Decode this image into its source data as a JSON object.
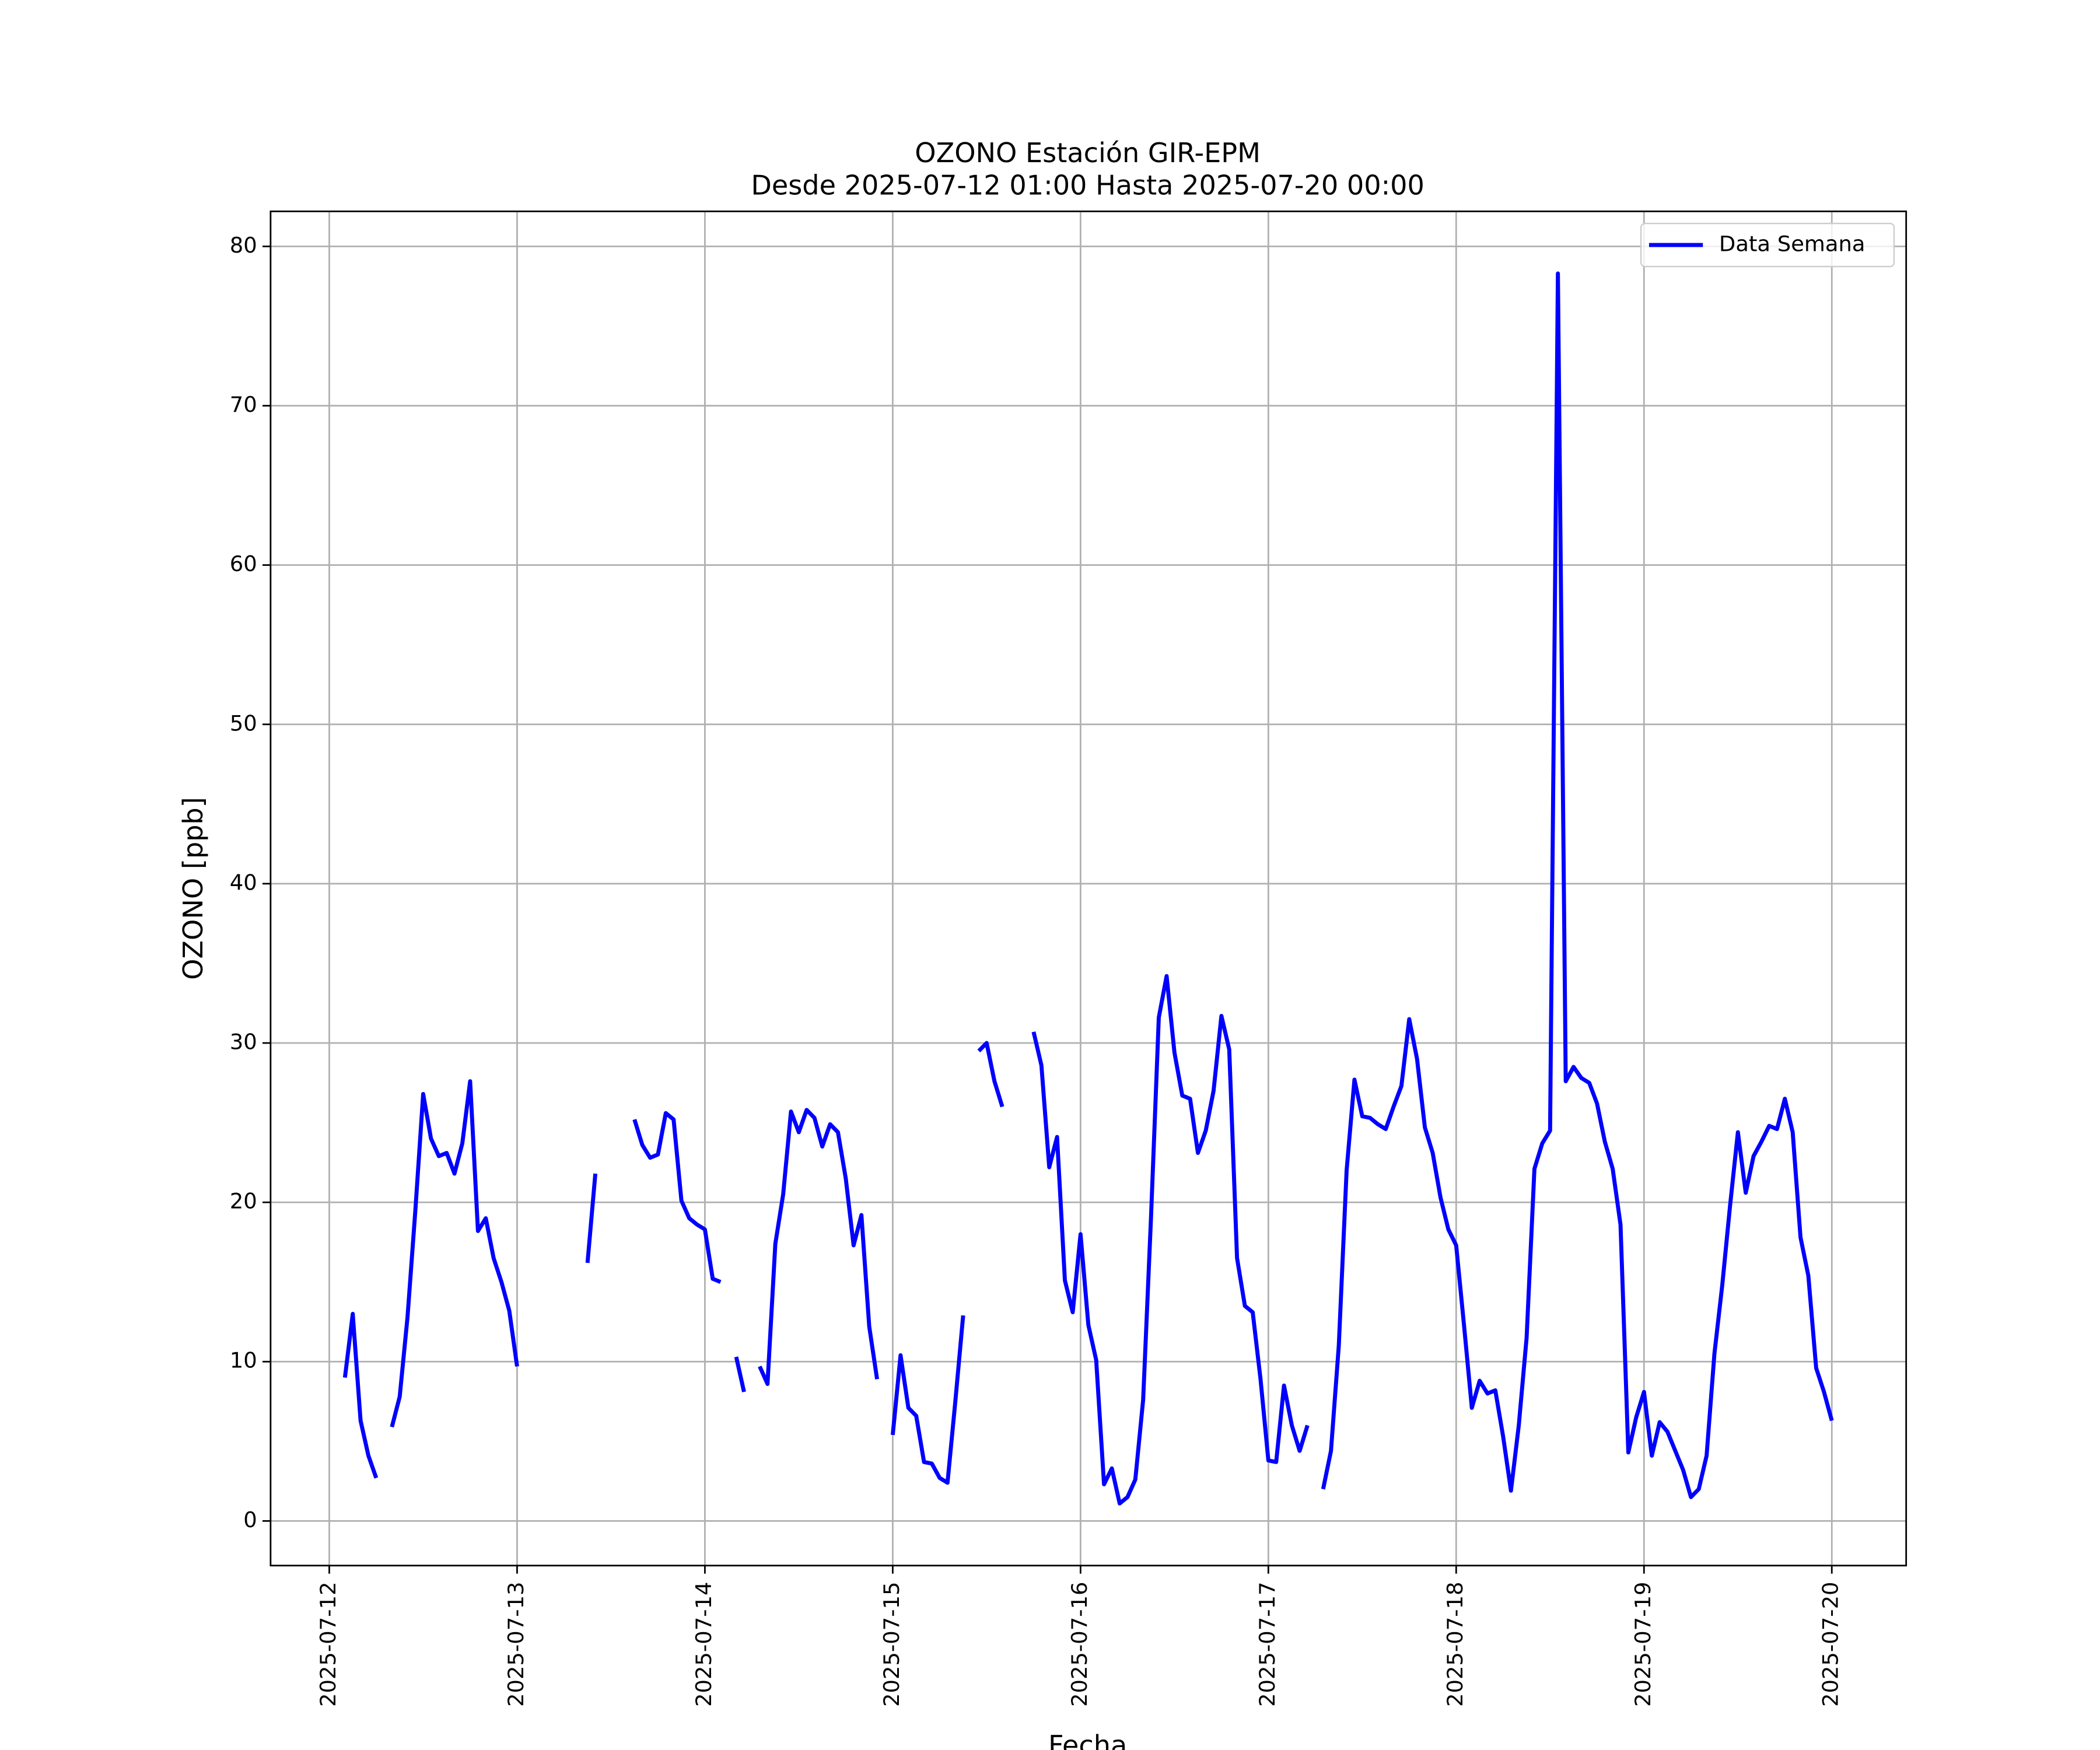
{
  "chart_data": {
    "type": "line",
    "title": "OZONO Estación GIR-EPM",
    "subtitle": "Desde 2025-07-12 01:00 Hasta 2025-07-20 00:00",
    "xlabel": "Fecha",
    "ylabel": "OZONO [ppb]",
    "x": [
      "2025-07-12 01:00",
      "2025-07-12 02:00",
      "2025-07-12 03:00",
      "2025-07-12 04:00",
      "2025-07-12 05:00",
      "2025-07-12 06:00",
      "2025-07-12 07:00",
      "2025-07-12 08:00",
      "2025-07-12 09:00",
      "2025-07-12 10:00",
      "2025-07-12 11:00",
      "2025-07-12 12:00",
      "2025-07-12 13:00",
      "2025-07-12 14:00",
      "2025-07-12 15:00",
      "2025-07-12 16:00",
      "2025-07-12 17:00",
      "2025-07-12 18:00",
      "2025-07-12 19:00",
      "2025-07-12 20:00",
      "2025-07-12 21:00",
      "2025-07-12 22:00",
      "2025-07-12 23:00",
      "2025-07-13 00:00",
      "2025-07-13 01:00",
      "2025-07-13 02:00",
      "2025-07-13 03:00",
      "2025-07-13 04:00",
      "2025-07-13 05:00",
      "2025-07-13 06:00",
      "2025-07-13 07:00",
      "2025-07-13 08:00",
      "2025-07-13 09:00",
      "2025-07-13 10:00",
      "2025-07-13 11:00",
      "2025-07-13 12:00",
      "2025-07-13 13:00",
      "2025-07-13 14:00",
      "2025-07-13 15:00",
      "2025-07-13 16:00",
      "2025-07-13 17:00",
      "2025-07-13 18:00",
      "2025-07-13 19:00",
      "2025-07-13 20:00",
      "2025-07-13 21:00",
      "2025-07-13 22:00",
      "2025-07-13 23:00",
      "2025-07-14 00:00",
      "2025-07-14 01:00",
      "2025-07-14 02:00",
      "2025-07-14 03:00",
      "2025-07-14 04:00",
      "2025-07-14 05:00",
      "2025-07-14 06:00",
      "2025-07-14 07:00",
      "2025-07-14 08:00",
      "2025-07-14 09:00",
      "2025-07-14 10:00",
      "2025-07-14 11:00",
      "2025-07-14 12:00",
      "2025-07-14 13:00",
      "2025-07-14 14:00",
      "2025-07-14 15:00",
      "2025-07-14 16:00",
      "2025-07-14 17:00",
      "2025-07-14 18:00",
      "2025-07-14 19:00",
      "2025-07-14 20:00",
      "2025-07-14 21:00",
      "2025-07-14 22:00",
      "2025-07-14 23:00",
      "2025-07-15 00:00",
      "2025-07-15 01:00",
      "2025-07-15 02:00",
      "2025-07-15 03:00",
      "2025-07-15 04:00",
      "2025-07-15 05:00",
      "2025-07-15 06:00",
      "2025-07-15 07:00",
      "2025-07-15 08:00",
      "2025-07-15 09:00",
      "2025-07-15 10:00",
      "2025-07-15 11:00",
      "2025-07-15 12:00",
      "2025-07-15 13:00",
      "2025-07-15 14:00",
      "2025-07-15 15:00",
      "2025-07-15 16:00",
      "2025-07-15 17:00",
      "2025-07-15 18:00",
      "2025-07-15 19:00",
      "2025-07-15 20:00",
      "2025-07-15 21:00",
      "2025-07-15 22:00",
      "2025-07-15 23:00",
      "2025-07-16 00:00",
      "2025-07-16 01:00",
      "2025-07-16 02:00",
      "2025-07-16 03:00",
      "2025-07-16 04:00",
      "2025-07-16 05:00",
      "2025-07-16 06:00",
      "2025-07-16 07:00",
      "2025-07-16 08:00",
      "2025-07-16 09:00",
      "2025-07-16 10:00",
      "2025-07-16 11:00",
      "2025-07-16 12:00",
      "2025-07-16 13:00",
      "2025-07-16 14:00",
      "2025-07-16 15:00",
      "2025-07-16 16:00",
      "2025-07-16 17:00",
      "2025-07-16 18:00",
      "2025-07-16 19:00",
      "2025-07-16 20:00",
      "2025-07-16 21:00",
      "2025-07-16 22:00",
      "2025-07-16 23:00",
      "2025-07-17 00:00",
      "2025-07-17 01:00",
      "2025-07-17 02:00",
      "2025-07-17 03:00",
      "2025-07-17 04:00",
      "2025-07-17 05:00",
      "2025-07-17 06:00",
      "2025-07-17 07:00",
      "2025-07-17 08:00",
      "2025-07-17 09:00",
      "2025-07-17 10:00",
      "2025-07-17 11:00",
      "2025-07-17 12:00",
      "2025-07-17 13:00",
      "2025-07-17 14:00",
      "2025-07-17 15:00",
      "2025-07-17 16:00",
      "2025-07-17 17:00",
      "2025-07-17 18:00",
      "2025-07-17 19:00",
      "2025-07-17 20:00",
      "2025-07-17 21:00",
      "2025-07-17 22:00",
      "2025-07-17 23:00",
      "2025-07-18 00:00",
      "2025-07-18 01:00",
      "2025-07-18 02:00",
      "2025-07-18 03:00",
      "2025-07-18 04:00",
      "2025-07-18 05:00",
      "2025-07-18 06:00",
      "2025-07-18 07:00",
      "2025-07-18 08:00",
      "2025-07-18 09:00",
      "2025-07-18 10:00",
      "2025-07-18 11:00",
      "2025-07-18 12:00",
      "2025-07-18 13:00",
      "2025-07-18 14:00",
      "2025-07-18 15:00",
      "2025-07-18 16:00",
      "2025-07-18 17:00",
      "2025-07-18 18:00",
      "2025-07-18 19:00",
      "2025-07-18 20:00",
      "2025-07-18 21:00",
      "2025-07-18 22:00",
      "2025-07-18 23:00",
      "2025-07-19 00:00",
      "2025-07-19 01:00",
      "2025-07-19 02:00",
      "2025-07-19 03:00",
      "2025-07-19 04:00",
      "2025-07-19 05:00",
      "2025-07-19 06:00",
      "2025-07-19 07:00",
      "2025-07-19 08:00",
      "2025-07-19 09:00",
      "2025-07-19 10:00",
      "2025-07-19 11:00",
      "2025-07-19 12:00",
      "2025-07-19 13:00",
      "2025-07-19 14:00",
      "2025-07-19 15:00",
      "2025-07-19 16:00",
      "2025-07-19 17:00",
      "2025-07-19 18:00",
      "2025-07-19 19:00",
      "2025-07-19 20:00",
      "2025-07-19 21:00",
      "2025-07-19 22:00",
      "2025-07-19 23:00",
      "2025-07-20 00:00"
    ],
    "series": [
      {
        "name": "Data Semana",
        "color": "#0000ff",
        "values": [
          null,
          9.0,
          13.0,
          6.3,
          4.1,
          2.7,
          null,
          5.9,
          7.8,
          12.8,
          19.5,
          26.8,
          24.0,
          22.9,
          23.1,
          21.8,
          23.7,
          27.6,
          18.2,
          19.0,
          16.5,
          15.0,
          13.2,
          9.7,
          null,
          null,
          null,
          null,
          null,
          null,
          null,
          null,
          16.2,
          21.8,
          null,
          null,
          null,
          null,
          25.2,
          23.6,
          22.8,
          23.0,
          25.6,
          25.2,
          20.1,
          19.0,
          18.6,
          18.3,
          15.2,
          15.0,
          null,
          10.3,
          8.1,
          null,
          9.7,
          8.6,
          17.4,
          20.5,
          25.7,
          24.4,
          25.8,
          25.3,
          23.5,
          24.9,
          24.4,
          21.5,
          17.3,
          19.2,
          12.2,
          8.9,
          null,
          5.4,
          10.4,
          7.1,
          6.6,
          3.7,
          3.6,
          2.7,
          2.4,
          7.5,
          12.9,
          null,
          29.5,
          30.0,
          27.6,
          26.0,
          null,
          null,
          null,
          30.7,
          28.6,
          22.2,
          24.1,
          15.1,
          13.1,
          18.0,
          12.3,
          10.1,
          2.3,
          3.3,
          1.1,
          1.5,
          2.6,
          7.6,
          19.0,
          31.6,
          34.2,
          29.4,
          26.7,
          26.5,
          23.1,
          24.5,
          27.0,
          31.7,
          29.6,
          16.5,
          13.5,
          13.1,
          8.9,
          3.8,
          3.7,
          8.5,
          6.0,
          4.4,
          6.0,
          null,
          2.0,
          4.4,
          11.0,
          22.0,
          27.7,
          25.4,
          25.3,
          24.9,
          24.6,
          26.0,
          27.3,
          31.5,
          29.0,
          24.7,
          23.1,
          20.3,
          18.3,
          17.3,
          12.3,
          7.1,
          8.8,
          8.0,
          8.2,
          5.3,
          1.9,
          6.0,
          11.5,
          22.1,
          23.7,
          24.5,
          78.3,
          27.6,
          28.5,
          27.8,
          27.5,
          26.2,
          23.8,
          22.1,
          18.6,
          4.3,
          6.5,
          8.1,
          4.1,
          6.2,
          5.6,
          4.4,
          3.2,
          1.5,
          2.0,
          4.1,
          10.5,
          14.8,
          19.8,
          24.4,
          20.6,
          22.9,
          23.8,
          24.8,
          24.6,
          26.5,
          24.4,
          17.8,
          15.4,
          9.6,
          8.1,
          6.3
        ]
      }
    ],
    "xlim": [
      "2025-07-11 16:30",
      "2025-07-20 09:30"
    ],
    "xticks": [
      "2025-07-12",
      "2025-07-13",
      "2025-07-14",
      "2025-07-15",
      "2025-07-16",
      "2025-07-17",
      "2025-07-18",
      "2025-07-19",
      "2025-07-20"
    ],
    "ylim": [
      -2.8,
      82.2
    ],
    "yticks": [
      0,
      10,
      20,
      30,
      40,
      50,
      60,
      70,
      80
    ],
    "grid": true,
    "legend": "upper right"
  }
}
